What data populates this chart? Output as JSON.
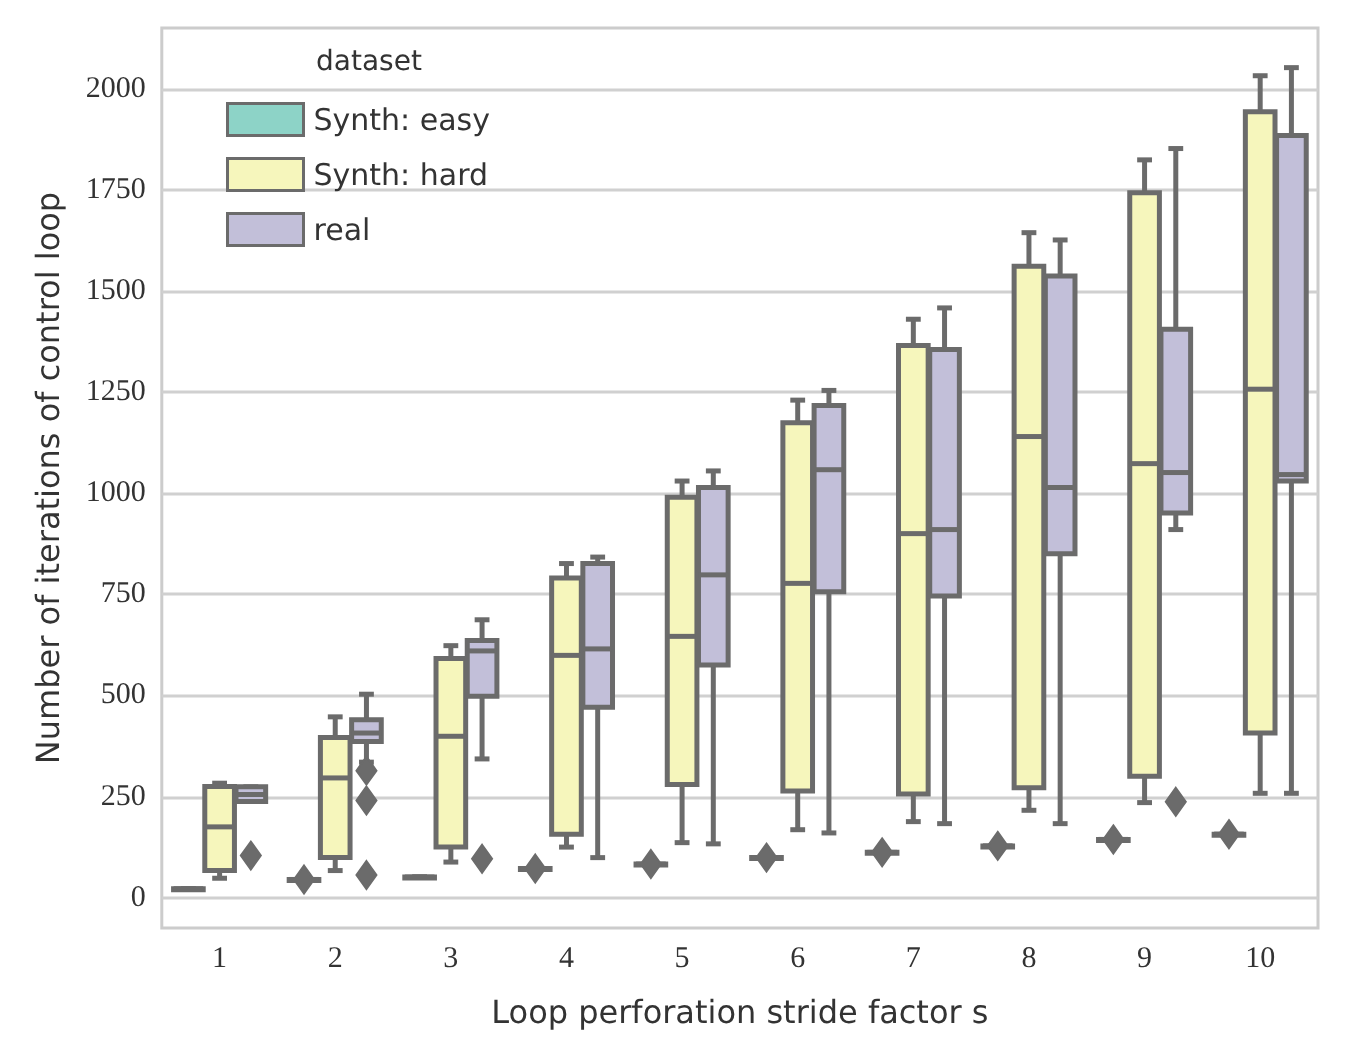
{
  "chart_data": {
    "type": "box",
    "xlabel": "Loop perforation stride factor s",
    "ylabel": "Number of iterations of control loop",
    "legend_title": "dataset",
    "legend": "top left",
    "grid": "y",
    "marker": "diamond",
    "categories": [
      "1",
      "2",
      "3",
      "4",
      "5",
      "6",
      "7",
      "8",
      "9",
      "10"
    ],
    "ylim": [
      -75,
      2150
    ],
    "yticks": [
      0,
      250,
      500,
      750,
      1000,
      1250,
      1500,
      1750,
      2000
    ],
    "series": [
      {
        "name": "Synth: easy",
        "color": "#8dd3c7",
        "boxes": [
          {
            "low": 22,
            "q1": 22,
            "median": 22,
            "q3": 22,
            "high": 22
          },
          {
            "low": 45,
            "q1": 45,
            "median": 45,
            "q3": 45,
            "high": 45,
            "outliers": [
              45
            ]
          },
          {
            "low": 51,
            "q1": 51,
            "median": 51,
            "q3": 51,
            "high": 51
          },
          {
            "low": 72,
            "q1": 72,
            "median": 72,
            "q3": 72,
            "high": 72,
            "outliers": [
              72
            ]
          },
          {
            "low": 83,
            "q1": 83,
            "median": 83,
            "q3": 83,
            "high": 83,
            "outliers": [
              83
            ]
          },
          {
            "low": 99,
            "q1": 99,
            "median": 99,
            "q3": 99,
            "high": 99,
            "outliers": [
              99
            ]
          },
          {
            "low": 112,
            "q1": 112,
            "median": 112,
            "q3": 112,
            "high": 112,
            "outliers": [
              112
            ]
          },
          {
            "low": 128,
            "q1": 128,
            "median": 128,
            "q3": 128,
            "high": 128,
            "outliers": [
              128
            ]
          },
          {
            "low": 144,
            "q1": 144,
            "median": 144,
            "q3": 144,
            "high": 144,
            "outliers": [
              144
            ]
          },
          {
            "low": 157,
            "q1": 157,
            "median": 157,
            "q3": 157,
            "high": 157,
            "outliers": [
              157
            ]
          }
        ]
      },
      {
        "name": "Synth: hard",
        "color": "#f6f6bc",
        "boxes": [
          {
            "low": 48,
            "q1": 67,
            "median": 175,
            "q3": 275,
            "high": 283
          },
          {
            "low": 67,
            "q1": 99,
            "median": 296,
            "q3": 396,
            "high": 447
          },
          {
            "low": 88,
            "q1": 125,
            "median": 399,
            "q3": 591,
            "high": 623
          },
          {
            "low": 125,
            "q1": 157,
            "median": 599,
            "q3": 790,
            "high": 826
          },
          {
            "low": 136,
            "q1": 280,
            "median": 646,
            "q3": 990,
            "high": 1030
          },
          {
            "low": 168,
            "q1": 264,
            "median": 777,
            "q3": 1174,
            "high": 1230
          },
          {
            "low": 188,
            "q1": 256,
            "median": 900,
            "q3": 1365,
            "high": 1430
          },
          {
            "low": 216,
            "q1": 272,
            "median": 1140,
            "q3": 1561,
            "high": 1644
          },
          {
            "low": 235,
            "q1": 300,
            "median": 1073,
            "q3": 1743,
            "high": 1824
          },
          {
            "low": 258,
            "q1": 407,
            "median": 1257,
            "q3": 1943,
            "high": 2032
          }
        ]
      },
      {
        "name": "real",
        "color": "#c2bfd9",
        "boxes": [
          {
            "low": 238,
            "q1": 238,
            "median": 255,
            "q3": 274,
            "high": 274,
            "outliers": [
              104
            ]
          },
          {
            "low": 335,
            "q1": 386,
            "median": 407,
            "q3": 440,
            "high": 503,
            "outliers": [
              314,
              240,
              56
            ]
          },
          {
            "low": 343,
            "q1": 498,
            "median": 610,
            "q3": 636,
            "high": 687,
            "outliers": [
              96
            ]
          },
          {
            "low": 99,
            "q1": 471,
            "median": 615,
            "q3": 826,
            "high": 842
          },
          {
            "low": 133,
            "q1": 575,
            "median": 798,
            "q3": 1014,
            "high": 1055
          },
          {
            "low": 160,
            "q1": 756,
            "median": 1058,
            "q3": 1217,
            "high": 1254
          },
          {
            "low": 183,
            "q1": 746,
            "median": 910,
            "q3": 1355,
            "high": 1458
          },
          {
            "low": 183,
            "q1": 850,
            "median": 1014,
            "q3": 1537,
            "high": 1626
          },
          {
            "low": 910,
            "q1": 951,
            "median": 1051,
            "q3": 1405,
            "high": 1852,
            "outliers": [
              237
            ]
          },
          {
            "low": 258,
            "q1": 1030,
            "median": 1046,
            "q3": 1884,
            "high": 2052
          }
        ]
      }
    ]
  }
}
